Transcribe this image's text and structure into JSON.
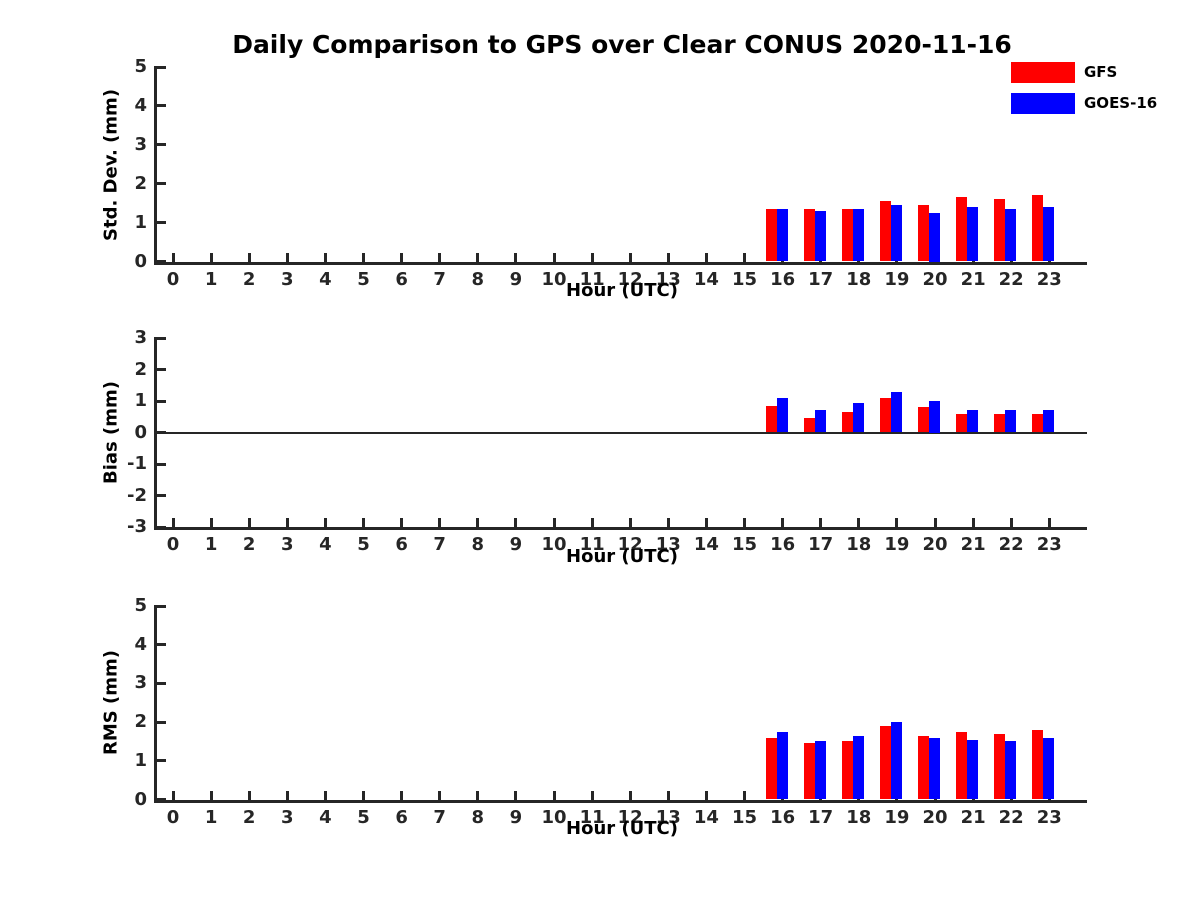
{
  "title": "Daily Comparison to GPS over Clear CONUS 2020-11-16",
  "legend": {
    "items": [
      {
        "label": "GFS",
        "color": "#ff0000"
      },
      {
        "label": "GOES-16",
        "color": "#0000ff"
      }
    ]
  },
  "hours": [
    0,
    1,
    2,
    3,
    4,
    5,
    6,
    7,
    8,
    9,
    10,
    11,
    12,
    13,
    14,
    15,
    16,
    17,
    18,
    19,
    20,
    21,
    22,
    23
  ],
  "chart_data": [
    {
      "type": "bar",
      "ylabel": "Std. Dev. (mm)",
      "xlabel": "Hour (UTC)",
      "ylim": [
        0,
        5
      ],
      "yticks": [
        5,
        4,
        3,
        2,
        1,
        0
      ],
      "grid": false,
      "x": [
        16,
        17,
        18,
        19,
        20,
        21,
        22,
        23
      ],
      "series": [
        {
          "name": "GFS",
          "color": "#ff0000",
          "values": [
            1.35,
            1.35,
            1.35,
            1.55,
            1.45,
            1.65,
            1.6,
            1.7
          ]
        },
        {
          "name": "GOES-16",
          "color": "#0000ff",
          "values": [
            1.35,
            1.3,
            1.35,
            1.45,
            1.25,
            1.4,
            1.35,
            1.4
          ]
        }
      ]
    },
    {
      "type": "bar",
      "ylabel": "Bias (mm)",
      "xlabel": "Hour (UTC)",
      "ylim": [
        -3,
        3
      ],
      "yticks": [
        3,
        2,
        1,
        0,
        -1,
        -2,
        -3
      ],
      "zero_line": true,
      "grid": false,
      "x": [
        16,
        17,
        18,
        19,
        20,
        21,
        22,
        23
      ],
      "series": [
        {
          "name": "GFS",
          "color": "#ff0000",
          "values": [
            0.85,
            0.45,
            0.65,
            1.1,
            0.8,
            0.6,
            0.6,
            0.6
          ]
        },
        {
          "name": "GOES-16",
          "color": "#0000ff",
          "values": [
            1.1,
            0.7,
            0.95,
            1.3,
            1.0,
            0.7,
            0.7,
            0.7
          ]
        }
      ]
    },
    {
      "type": "bar",
      "ylabel": "RMS (mm)",
      "xlabel": "Hour (UTC)",
      "ylim": [
        0,
        5
      ],
      "yticks": [
        5,
        4,
        3,
        2,
        1,
        0
      ],
      "grid": false,
      "x": [
        16,
        17,
        18,
        19,
        20,
        21,
        22,
        23
      ],
      "series": [
        {
          "name": "GFS",
          "color": "#ff0000",
          "values": [
            1.6,
            1.45,
            1.5,
            1.9,
            1.65,
            1.75,
            1.7,
            1.8
          ]
        },
        {
          "name": "GOES-16",
          "color": "#0000ff",
          "values": [
            1.75,
            1.5,
            1.65,
            2.0,
            1.6,
            1.55,
            1.5,
            1.6
          ]
        }
      ]
    }
  ]
}
